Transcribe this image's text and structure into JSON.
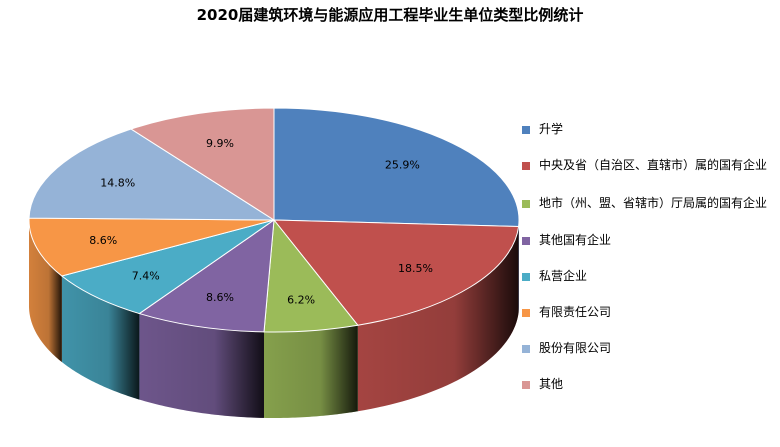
{
  "chart_data": {
    "type": "pie",
    "title": "2020届建筑环境与能源应用工程毕业生单位类型比例统计",
    "categories": [
      "升学",
      "中央及省（自治区、直辖市）属的国有企业",
      "地市（州、盟、省辖市）厅局属的国有企业",
      "其他国有企业",
      "私营企业",
      "有限责任公司",
      "股份有限公司",
      "其他"
    ],
    "values": [
      25.9,
      18.5,
      6.2,
      8.6,
      7.4,
      8.6,
      14.8,
      9.9
    ],
    "value_labels": [
      "25.9%",
      "18.5%",
      "6.2%",
      "8.6%",
      "7.4%",
      "8.6%",
      "14.8%",
      "9.9%"
    ],
    "colors": [
      "#4f81bd",
      "#c0504d",
      "#9bbb59",
      "#8064a2",
      "#4bacc6",
      "#f79646",
      "#95b3d7",
      "#d99694"
    ],
    "legend_position": "right",
    "style": "3d"
  }
}
